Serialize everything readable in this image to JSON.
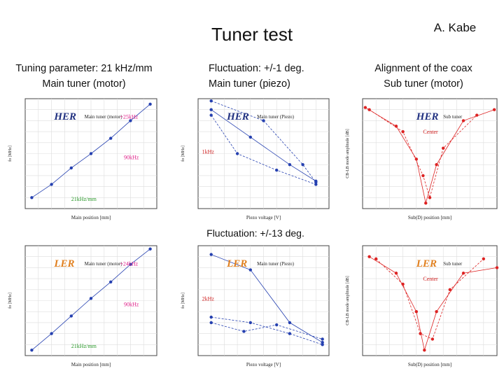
{
  "title": "Tuner test",
  "author": "A. Kabe",
  "headings": [
    [
      "Tuning parameter: 21 kHz/mm",
      "Main tuner (motor)"
    ],
    [
      "Fluctuation: +/-1 deg.",
      "Main tuner (piezo)"
    ],
    [
      "Alignment of the coax",
      "Sub tuner (motor)"
    ]
  ],
  "middle_caption": "Fluctuation: +/-13 deg.",
  "plots": [
    {
      "label": "HER",
      "legend": "Main tuner (motor)",
      "x_label": "Main position [mm]",
      "y_label": "fo [MHz]",
      "annotations": [
        "+25kHz",
        "90kHz",
        "21kHz/mm"
      ]
    },
    {
      "label": "HER",
      "legend": "Main tuner (Piezo)",
      "x_label": "Piezo voltage [V]",
      "y_label": "fo [MHz]",
      "annotations": [
        "1kHz"
      ]
    },
    {
      "label": "HER",
      "legend": "Sub tuner",
      "x_label": "Sub(D) position [mm]",
      "y_label": "CB-LB mode amplitude [dB]",
      "annotations": [
        "Center"
      ]
    },
    {
      "label": "LER",
      "legend": "Main tuner (motor)",
      "x_label": "Main position [mm]",
      "y_label": "fo [MHz]",
      "annotations": [
        "+24kHz",
        "90kHz",
        "21kHz/mm"
      ]
    },
    {
      "label": "LER",
      "legend": "Main tuner (Piezo)",
      "x_label": "Piezo voltage [V]",
      "y_label": "fo [MHz]",
      "annotations": [
        "2kHz"
      ]
    },
    {
      "label": "LER",
      "legend": "Sub tuner",
      "x_label": "Sub(D) position [mm]",
      "y_label": "CB-LB mode amplitude [dB]",
      "annotations": [
        "Center"
      ]
    }
  ]
}
